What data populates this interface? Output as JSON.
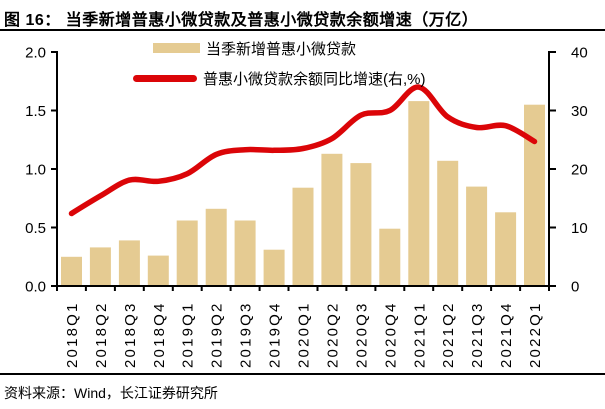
{
  "title": "图  16： 当季新增普惠小微贷款及普惠小微贷款余额增速（万亿）",
  "source": "资料来源：Wind，长江证券研究所",
  "legend": {
    "bar_label": "当季新增普惠小微贷款",
    "line_label": "普惠小微贷款余额同比增速(右,%)"
  },
  "colors": {
    "bar": "#E5CB92",
    "line": "#DB0508",
    "axis": "#000000",
    "text": "#000000",
    "background": "#FFFFFF"
  },
  "chart_data": {
    "type": "bar",
    "combo": "bar + smoothed line, dual axis",
    "title": "当季新增普惠小微贷款及普惠小微贷款余额增速（万亿）",
    "categories": [
      "2018Q1",
      "2018Q2",
      "2018Q3",
      "2018Q4",
      "2019Q1",
      "2019Q2",
      "2019Q3",
      "2019Q4",
      "2020Q1",
      "2020Q2",
      "2020Q3",
      "2020Q4",
      "2021Q1",
      "2021Q2",
      "2021Q3",
      "2021Q4",
      "2022Q1"
    ],
    "series": [
      {
        "name": "当季新增普惠小微贷款",
        "type": "bar",
        "axis": "left",
        "values": [
          0.25,
          0.33,
          0.39,
          0.26,
          0.56,
          0.66,
          0.56,
          0.31,
          0.84,
          1.13,
          1.05,
          0.49,
          1.58,
          1.07,
          0.85,
          0.63,
          1.55
        ]
      },
      {
        "name": "普惠小微贷款余额同比增速(右,%)",
        "type": "line",
        "axis": "right",
        "values": [
          12.4,
          15.4,
          18.1,
          17.9,
          19.2,
          22.5,
          23.3,
          23.2,
          23.5,
          25.2,
          29.2,
          30.0,
          34.0,
          28.9,
          27.1,
          27.4,
          24.7
        ]
      }
    ],
    "left_axis": {
      "unit": "万亿",
      "min": 0,
      "max": 2.0,
      "ticks": [
        "0.0",
        "0.5",
        "1.0",
        "1.5",
        "2.0"
      ]
    },
    "right_axis": {
      "unit": "%",
      "min": 0,
      "max": 40,
      "ticks": [
        "0",
        "10",
        "20",
        "30",
        "40"
      ]
    },
    "grid": false,
    "legend_position": "top-inside"
  }
}
